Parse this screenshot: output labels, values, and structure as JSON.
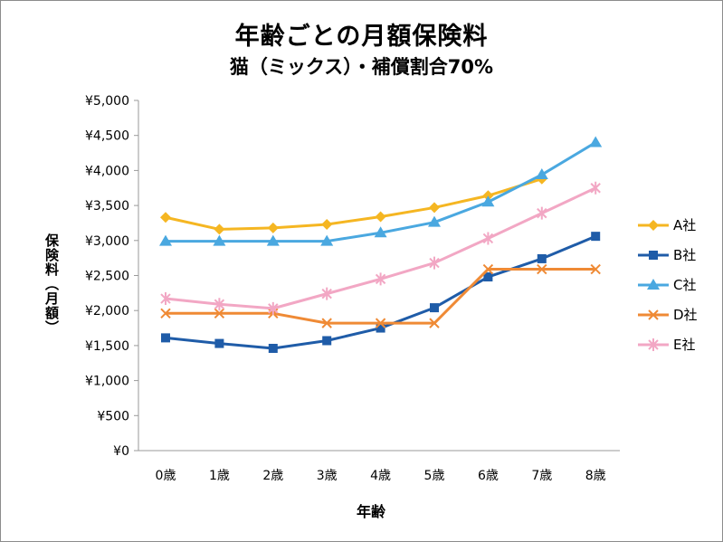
{
  "chart_data": {
    "type": "line",
    "title": "年齢ごとの月額保険料",
    "subtitle": "猫（ミックス）・補償割合70%",
    "xlabel": "年齢",
    "ylabel": "保険料（月額）",
    "categories": [
      "0歳",
      "1歳",
      "2歳",
      "3歳",
      "4歳",
      "5歳",
      "6歳",
      "7歳",
      "8歳"
    ],
    "y_ticks": [
      "¥0",
      "¥500",
      "¥1,000",
      "¥1,500",
      "¥2,000",
      "¥2,500",
      "¥3,000",
      "¥3,500",
      "¥4,000",
      "¥4,500",
      "¥5,000"
    ],
    "ylim": [
      0,
      5000
    ],
    "grid": false,
    "legend": "right",
    "series": [
      {
        "name": "A社",
        "color": "#f5b622",
        "marker": "diamond",
        "values": [
          3330,
          3160,
          3180,
          3230,
          3340,
          3470,
          3640,
          3880,
          null
        ]
      },
      {
        "name": "B社",
        "color": "#1f5ca8",
        "marker": "square",
        "values": [
          1610,
          1530,
          1460,
          1570,
          1750,
          2040,
          2480,
          2740,
          3060
        ]
      },
      {
        "name": "C社",
        "color": "#4aa8e0",
        "marker": "triangle",
        "values": [
          2990,
          2990,
          2990,
          2990,
          3110,
          3260,
          3550,
          3940,
          4400
        ]
      },
      {
        "name": "D社",
        "color": "#ef8a35",
        "marker": "x",
        "values": [
          1960,
          1960,
          1960,
          1820,
          1820,
          1820,
          2590,
          2590,
          2590
        ]
      },
      {
        "name": "E社",
        "color": "#f2a7c4",
        "marker": "star",
        "values": [
          2170,
          2090,
          2030,
          2240,
          2450,
          2680,
          3030,
          3390,
          3750
        ]
      }
    ]
  }
}
